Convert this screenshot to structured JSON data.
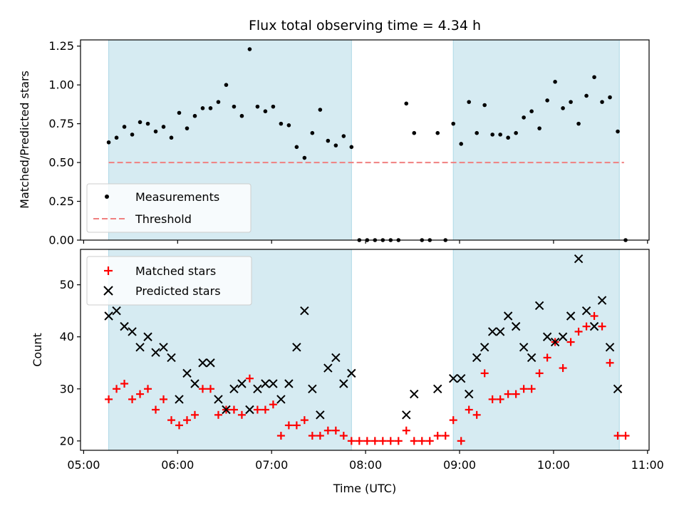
{
  "chart_data": [
    {
      "type": "scatter",
      "title": "Flux total observing time = 4.34 h",
      "xlabel": "",
      "ylabel": "Matched/Predicted stars",
      "ylim": [
        0,
        1.29
      ],
      "yticks": [
        0.0,
        0.25,
        0.5,
        0.75,
        1.0,
        1.25
      ],
      "ytick_labels": [
        "0.00",
        "0.25",
        "0.50",
        "0.75",
        "1.00",
        "1.25"
      ],
      "xlim": [
        "04:58",
        "11:01"
      ],
      "shaded_intervals": [
        [
          "05:16",
          "07:51"
        ],
        [
          "08:56",
          "10:42"
        ]
      ],
      "threshold": {
        "value": 0.5,
        "x_range": [
          "05:16",
          "10:45"
        ],
        "color": "#f08080"
      },
      "legend": {
        "placement": "lower-left",
        "entries": [
          "Measurements",
          "Threshold"
        ]
      },
      "series": [
        {
          "name": "Measurements",
          "color": "#000000",
          "points": [
            [
              "05:16",
              0.63
            ],
            [
              "05:21",
              0.66
            ],
            [
              "05:26",
              0.73
            ],
            [
              "05:31",
              0.68
            ],
            [
              "05:36",
              0.76
            ],
            [
              "05:41",
              0.75
            ],
            [
              "05:46",
              0.7
            ],
            [
              "05:51",
              0.73
            ],
            [
              "05:56",
              0.66
            ],
            [
              "06:01",
              0.82
            ],
            [
              "06:06",
              0.72
            ],
            [
              "06:11",
              0.8
            ],
            [
              "06:16",
              0.85
            ],
            [
              "06:21",
              0.85
            ],
            [
              "06:26",
              0.89
            ],
            [
              "06:31",
              1.0
            ],
            [
              "06:36",
              0.86
            ],
            [
              "06:41",
              0.8
            ],
            [
              "06:46",
              1.23
            ],
            [
              "06:51",
              0.86
            ],
            [
              "06:56",
              0.83
            ],
            [
              "07:01",
              0.86
            ],
            [
              "07:06",
              0.75
            ],
            [
              "07:11",
              0.74
            ],
            [
              "07:16",
              0.6
            ],
            [
              "07:21",
              0.53
            ],
            [
              "07:26",
              0.69
            ],
            [
              "07:31",
              0.84
            ],
            [
              "07:36",
              0.64
            ],
            [
              "07:41",
              0.61
            ],
            [
              "07:46",
              0.67
            ],
            [
              "07:51",
              0.6
            ],
            [
              "07:56",
              0.0
            ],
            [
              "08:01",
              0.0
            ],
            [
              "08:06",
              0.0
            ],
            [
              "08:11",
              0.0
            ],
            [
              "08:16",
              0.0
            ],
            [
              "08:21",
              0.0
            ],
            [
              "08:26",
              0.88
            ],
            [
              "08:31",
              0.69
            ],
            [
              "08:36",
              0.0
            ],
            [
              "08:41",
              0.0
            ],
            [
              "08:46",
              0.69
            ],
            [
              "08:51",
              0.0
            ],
            [
              "08:56",
              0.75
            ],
            [
              "09:01",
              0.62
            ],
            [
              "09:06",
              0.89
            ],
            [
              "09:11",
              0.69
            ],
            [
              "09:16",
              0.87
            ],
            [
              "09:21",
              0.68
            ],
            [
              "09:26",
              0.68
            ],
            [
              "09:31",
              0.66
            ],
            [
              "09:36",
              0.69
            ],
            [
              "09:41",
              0.79
            ],
            [
              "09:46",
              0.83
            ],
            [
              "09:51",
              0.72
            ],
            [
              "09:56",
              0.9
            ],
            [
              "10:01",
              1.02
            ],
            [
              "10:06",
              0.85
            ],
            [
              "10:11",
              0.89
            ],
            [
              "10:16",
              0.75
            ],
            [
              "10:21",
              0.93
            ],
            [
              "10:26",
              1.05
            ],
            [
              "10:31",
              0.89
            ],
            [
              "10:36",
              0.92
            ],
            [
              "10:41",
              0.7
            ],
            [
              "10:46",
              0.0
            ]
          ]
        }
      ]
    },
    {
      "type": "scatter",
      "title": "",
      "xlabel": "Time (UTC)",
      "ylabel": "Count",
      "ylim": [
        18.2,
        56.8
      ],
      "yticks": [
        20,
        30,
        40,
        50
      ],
      "ytick_labels": [
        "20",
        "30",
        "40",
        "50"
      ],
      "xlim": [
        "04:58",
        "11:01"
      ],
      "xticks": [
        "05:00",
        "06:00",
        "07:00",
        "08:00",
        "09:00",
        "10:00",
        "11:00"
      ],
      "xtick_labels": [
        "05:00",
        "06:00",
        "07:00",
        "08:00",
        "09:00",
        "10:00",
        "11:00"
      ],
      "shaded_intervals": [
        [
          "05:16",
          "07:51"
        ],
        [
          "08:56",
          "10:42"
        ]
      ],
      "legend": {
        "placement": "upper-left",
        "entries": [
          "Matched stars",
          "Predicted stars"
        ]
      },
      "series": [
        {
          "name": "Matched stars",
          "color": "#ff0000",
          "marker": "plus",
          "points": [
            [
              "05:16",
              28
            ],
            [
              "05:21",
              30
            ],
            [
              "05:26",
              31
            ],
            [
              "05:31",
              28
            ],
            [
              "05:36",
              29
            ],
            [
              "05:41",
              30
            ],
            [
              "05:46",
              26
            ],
            [
              "05:51",
              28
            ],
            [
              "05:56",
              24
            ],
            [
              "06:01",
              23
            ],
            [
              "06:06",
              24
            ],
            [
              "06:11",
              25
            ],
            [
              "06:16",
              30
            ],
            [
              "06:21",
              30
            ],
            [
              "06:26",
              25
            ],
            [
              "06:31",
              26
            ],
            [
              "06:36",
              26
            ],
            [
              "06:41",
              25
            ],
            [
              "06:46",
              32
            ],
            [
              "06:51",
              26
            ],
            [
              "06:56",
              26
            ],
            [
              "07:01",
              27
            ],
            [
              "07:06",
              21
            ],
            [
              "07:11",
              23
            ],
            [
              "07:16",
              23
            ],
            [
              "07:21",
              24
            ],
            [
              "07:26",
              21
            ],
            [
              "07:31",
              21
            ],
            [
              "07:36",
              22
            ],
            [
              "07:41",
              22
            ],
            [
              "07:46",
              21
            ],
            [
              "07:51",
              20
            ],
            [
              "07:56",
              20
            ],
            [
              "08:01",
              20
            ],
            [
              "08:06",
              20
            ],
            [
              "08:11",
              20
            ],
            [
              "08:16",
              20
            ],
            [
              "08:21",
              20
            ],
            [
              "08:26",
              22
            ],
            [
              "08:31",
              20
            ],
            [
              "08:36",
              20
            ],
            [
              "08:41",
              20
            ],
            [
              "08:46",
              21
            ],
            [
              "08:51",
              21
            ],
            [
              "08:56",
              24
            ],
            [
              "09:01",
              20
            ],
            [
              "09:06",
              26
            ],
            [
              "09:11",
              25
            ],
            [
              "09:16",
              33
            ],
            [
              "09:21",
              28
            ],
            [
              "09:26",
              28
            ],
            [
              "09:31",
              29
            ],
            [
              "09:36",
              29
            ],
            [
              "09:41",
              30
            ],
            [
              "09:46",
              30
            ],
            [
              "09:51",
              33
            ],
            [
              "09:56",
              36
            ],
            [
              "10:01",
              39
            ],
            [
              "10:06",
              34
            ],
            [
              "10:11",
              39
            ],
            [
              "10:16",
              41
            ],
            [
              "10:21",
              42
            ],
            [
              "10:26",
              44
            ],
            [
              "10:31",
              42
            ],
            [
              "10:36",
              35
            ],
            [
              "10:41",
              21
            ],
            [
              "10:46",
              21
            ]
          ]
        },
        {
          "name": "Predicted stars",
          "color": "#000000",
          "marker": "x",
          "points": [
            [
              "05:16",
              44
            ],
            [
              "05:21",
              45
            ],
            [
              "05:26",
              42
            ],
            [
              "05:31",
              41
            ],
            [
              "05:36",
              38
            ],
            [
              "05:41",
              40
            ],
            [
              "05:46",
              37
            ],
            [
              "05:51",
              38
            ],
            [
              "05:56",
              36
            ],
            [
              "06:01",
              28
            ],
            [
              "06:06",
              33
            ],
            [
              "06:11",
              31
            ],
            [
              "06:16",
              35
            ],
            [
              "06:21",
              35
            ],
            [
              "06:26",
              28
            ],
            [
              "06:31",
              26
            ],
            [
              "06:36",
              30
            ],
            [
              "06:41",
              31
            ],
            [
              "06:46",
              26
            ],
            [
              "06:51",
              30
            ],
            [
              "06:56",
              31
            ],
            [
              "07:01",
              31
            ],
            [
              "07:06",
              28
            ],
            [
              "07:11",
              31
            ],
            [
              "07:16",
              38
            ],
            [
              "07:21",
              45
            ],
            [
              "07:26",
              30
            ],
            [
              "07:31",
              25
            ],
            [
              "07:36",
              34
            ],
            [
              "07:41",
              36
            ],
            [
              "07:46",
              31
            ],
            [
              "07:51",
              33
            ],
            [
              "08:26",
              25
            ],
            [
              "08:31",
              29
            ],
            [
              "08:46",
              30
            ],
            [
              "08:56",
              32
            ],
            [
              "09:01",
              32
            ],
            [
              "09:06",
              29
            ],
            [
              "09:11",
              36
            ],
            [
              "09:16",
              38
            ],
            [
              "09:21",
              41
            ],
            [
              "09:26",
              41
            ],
            [
              "09:31",
              44
            ],
            [
              "09:36",
              42
            ],
            [
              "09:41",
              38
            ],
            [
              "09:46",
              36
            ],
            [
              "09:51",
              46
            ],
            [
              "09:56",
              40
            ],
            [
              "10:01",
              39
            ],
            [
              "10:06",
              40
            ],
            [
              "10:11",
              44
            ],
            [
              "10:16",
              55
            ],
            [
              "10:21",
              45
            ],
            [
              "10:26",
              42
            ],
            [
              "10:31",
              47
            ],
            [
              "10:36",
              38
            ],
            [
              "10:41",
              30
            ]
          ]
        }
      ]
    }
  ]
}
